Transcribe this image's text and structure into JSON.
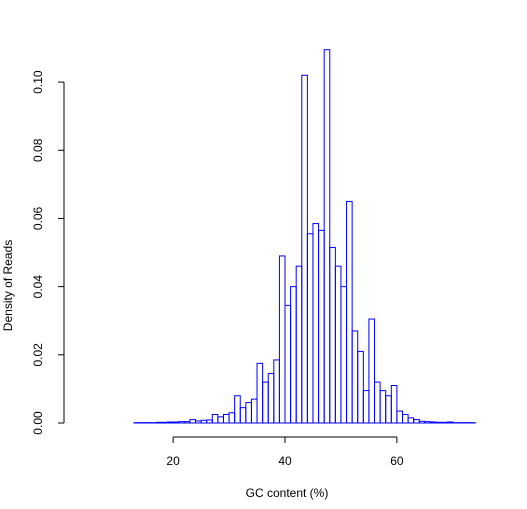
{
  "chart_data": {
    "type": "bar",
    "title": "",
    "xlabel": "GC content (%)",
    "ylabel": "Density of Reads",
    "xlim": [
      3,
      77
    ],
    "ylim": [
      0,
      0.11
    ],
    "x_ticks": [
      20,
      40,
      60
    ],
    "y_ticks": [
      0.0,
      0.02,
      0.04,
      0.06,
      0.08,
      0.1
    ],
    "x_tick_labels": [
      "20",
      "40",
      "60"
    ],
    "y_tick_labels": [
      "0.00",
      "0.02",
      "0.04",
      "0.06",
      "0.08",
      "0.10"
    ],
    "bar_color": "#0000ff",
    "bin_width": 1,
    "bins": [
      [
        3,
        0.0
      ],
      [
        4,
        0.0
      ],
      [
        5,
        0.0
      ],
      [
        6,
        0.0
      ],
      [
        7,
        0.0
      ],
      [
        8,
        0.0
      ],
      [
        9,
        0.0
      ],
      [
        10,
        0.0
      ],
      [
        11,
        0.0
      ],
      [
        12,
        0.0
      ],
      [
        13,
        0.0001
      ],
      [
        14,
        0.0001
      ],
      [
        15,
        0.0001
      ],
      [
        16,
        0.0001
      ],
      [
        17,
        0.0002
      ],
      [
        18,
        0.0002
      ],
      [
        19,
        0.0003
      ],
      [
        20,
        0.0003
      ],
      [
        21,
        0.0004
      ],
      [
        22,
        0.0004
      ],
      [
        23,
        0.001
      ],
      [
        24,
        0.0006
      ],
      [
        25,
        0.0008
      ],
      [
        26,
        0.0009
      ],
      [
        27,
        0.0025
      ],
      [
        28,
        0.0018
      ],
      [
        29,
        0.0025
      ],
      [
        30,
        0.003
      ],
      [
        31,
        0.008
      ],
      [
        32,
        0.0045
      ],
      [
        33,
        0.006
      ],
      [
        34,
        0.007
      ],
      [
        35,
        0.0175
      ],
      [
        36,
        0.012
      ],
      [
        37,
        0.0145
      ],
      [
        38,
        0.0185
      ],
      [
        39,
        0.049
      ],
      [
        40,
        0.0345
      ],
      [
        41,
        0.04
      ],
      [
        42,
        0.046
      ],
      [
        43,
        0.102
      ],
      [
        44,
        0.0555
      ],
      [
        45,
        0.0585
      ],
      [
        46,
        0.0565
      ],
      [
        47,
        0.1095
      ],
      [
        48,
        0.0515
      ],
      [
        49,
        0.046
      ],
      [
        50,
        0.04
      ],
      [
        51,
        0.065
      ],
      [
        52,
        0.027
      ],
      [
        53,
        0.021
      ],
      [
        54,
        0.0095
      ],
      [
        55,
        0.0305
      ],
      [
        56,
        0.012
      ],
      [
        57,
        0.0095
      ],
      [
        58,
        0.008
      ],
      [
        59,
        0.011
      ],
      [
        60,
        0.0035
      ],
      [
        61,
        0.0025
      ],
      [
        62,
        0.0015
      ],
      [
        63,
        0.001
      ],
      [
        64,
        0.0005
      ],
      [
        65,
        0.0004
      ],
      [
        66,
        0.0003
      ],
      [
        67,
        0.0002
      ],
      [
        68,
        0.0002
      ],
      [
        69,
        0.0003
      ],
      [
        70,
        0.0001
      ],
      [
        71,
        0.0001
      ],
      [
        72,
        0.0001
      ],
      [
        73,
        0.0001
      ],
      [
        74,
        0.0
      ],
      [
        75,
        0.0
      ],
      [
        76,
        0.0
      ]
    ]
  }
}
